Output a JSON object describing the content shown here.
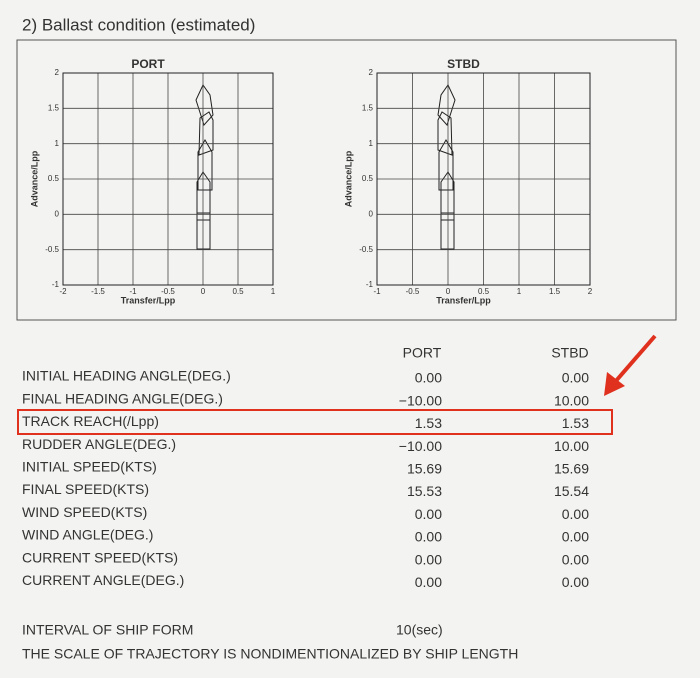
{
  "section_title": "2) Ballast condition (estimated)",
  "charts": [
    {
      "title": "PORT",
      "x_label": "Transfer/Lpp",
      "y_label": "Advance/Lpp",
      "xlim": [
        -2,
        1
      ],
      "xticks": [
        -2,
        -1.5,
        -1,
        -0.5,
        0,
        0.5,
        1
      ],
      "ylim": [
        -1,
        2
      ],
      "yticks": [
        -1,
        -0.5,
        0,
        0.5,
        1,
        1.5,
        2
      ]
    },
    {
      "title": "STBD",
      "x_label": "Transfer/Lpp",
      "y_label": "Advance/Lpp",
      "xlim": [
        -1,
        2
      ],
      "xticks": [
        -1,
        -0.5,
        0,
        0.5,
        1,
        1.5,
        2
      ],
      "ylim": [
        -1,
        2
      ],
      "yticks": [
        -1,
        -0.5,
        0,
        0.5,
        1,
        1.5,
        2
      ]
    }
  ],
  "table": {
    "columns": [
      "PORT",
      "STBD"
    ],
    "rows": [
      {
        "label": "INITIAL HEADING ANGLE(DEG.)",
        "values": [
          "0.00",
          "0.00"
        ]
      },
      {
        "label": "FINAL HEADING ANGLE(DEG.)",
        "values": [
          "−10.00",
          "10.00"
        ]
      },
      {
        "label": "TRACK REACH(/Lpp)",
        "values": [
          "1.53",
          "1.53"
        ]
      },
      {
        "label": "RUDDER ANGLE(DEG.)",
        "values": [
          "−10.00",
          "10.00"
        ]
      },
      {
        "label": "INITIAL SPEED(KTS)",
        "values": [
          "15.69",
          "15.69"
        ]
      },
      {
        "label": "FINAL SPEED(KTS)",
        "values": [
          "15.53",
          "15.54"
        ]
      },
      {
        "label": "WIND SPEED(KTS)",
        "values": [
          "0.00",
          "0.00"
        ]
      },
      {
        "label": "WIND ANGLE(DEG.)",
        "values": [
          "0.00",
          "0.00"
        ]
      },
      {
        "label": "CURRENT SPEED(KTS)",
        "values": [
          "0.00",
          "0.00"
        ]
      },
      {
        "label": "CURRENT ANGLE(DEG.)",
        "values": [
          "0.00",
          "0.00"
        ]
      }
    ]
  },
  "interval": {
    "label": "INTERVAL OF SHIP FORM",
    "value": "10(sec)"
  },
  "note": "THE SCALE OF TRAJECTORY IS NONDIMENTIONALIZED BY SHIP LENGTH"
}
